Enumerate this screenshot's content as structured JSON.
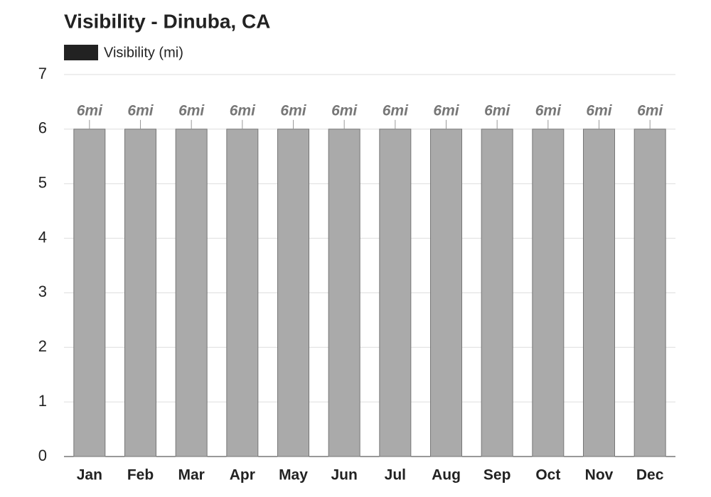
{
  "chart_data": {
    "type": "bar",
    "title": "Visibility - Dinuba, CA",
    "categories": [
      "Jan",
      "Feb",
      "Mar",
      "Apr",
      "May",
      "Jun",
      "Jul",
      "Aug",
      "Sep",
      "Oct",
      "Nov",
      "Dec"
    ],
    "series": [
      {
        "name": "Visibility (mi)",
        "color": "#aaaaaa",
        "legend_color": "#222222",
        "values": [
          6,
          6,
          6,
          6,
          6,
          6,
          6,
          6,
          6,
          6,
          6,
          6
        ],
        "value_labels": [
          "6mi",
          "6mi",
          "6mi",
          "6mi",
          "6mi",
          "6mi",
          "6mi",
          "6mi",
          "6mi",
          "6mi",
          "6mi",
          "6mi"
        ]
      }
    ],
    "ylim": [
      0,
      7
    ],
    "yticks": [
      0,
      1,
      2,
      3,
      4,
      5,
      6,
      7
    ],
    "grid": true
  }
}
